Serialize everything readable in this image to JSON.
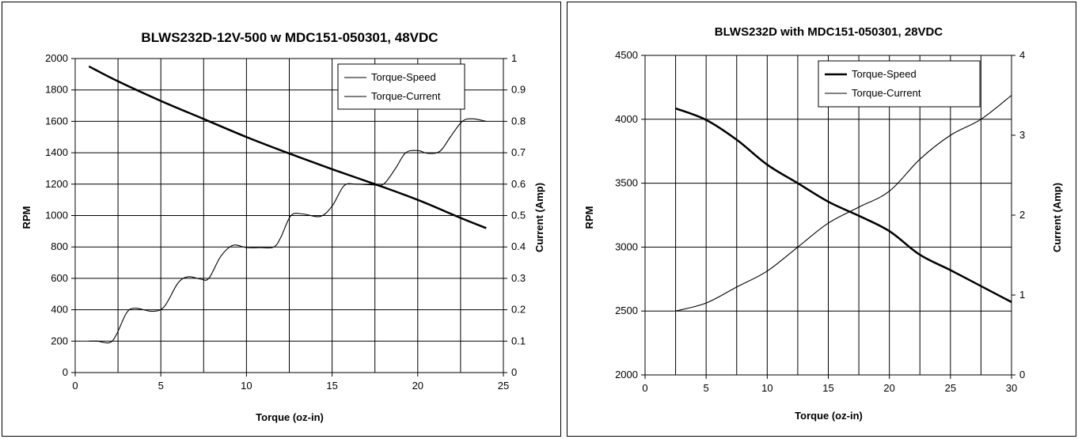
{
  "chart_data": [
    {
      "type": "line",
      "title": "BLWS232D-12V-500  w MDC151-050301,  48VDC",
      "xlabel": "Torque (oz-in)",
      "ylabel": "RPM",
      "y2label": "Current (Amp)",
      "xlim": [
        0,
        25
      ],
      "xticks": [
        0,
        5,
        10,
        15,
        20,
        25
      ],
      "ylim": [
        0,
        2000
      ],
      "yticks": [
        0,
        200,
        400,
        600,
        800,
        1000,
        1200,
        1400,
        1600,
        1800,
        2000
      ],
      "y2lim": [
        0,
        1
      ],
      "y2ticks": [
        0,
        0.1,
        0.2,
        0.3,
        0.4,
        0.5,
        0.6,
        0.7,
        0.8,
        0.9,
        1
      ],
      "grid": true,
      "legend_position": "top-right",
      "series": [
        {
          "name": "Torque-Speed",
          "axis": "left",
          "x": [
            0.8,
            2.5,
            5,
            7.5,
            10,
            12.5,
            15,
            17.5,
            20,
            22.5,
            24
          ],
          "values": [
            1950,
            1855,
            1730,
            1615,
            1500,
            1395,
            1295,
            1200,
            1100,
            985,
            920
          ]
        },
        {
          "name": "Torque-Current",
          "axis": "right",
          "x": [
            0.8,
            1.3,
            2.0,
            2.4,
            3.0,
            3.5,
            4.5,
            5.2,
            6.0,
            6.6,
            7.3,
            7.8,
            8.5,
            9.2,
            10.0,
            10.8,
            11.6,
            12.0,
            12.6,
            13.3,
            14.3,
            15.0,
            15.7,
            16.4,
            17.3,
            18.0,
            18.7,
            19.3,
            20.0,
            20.6,
            21.3,
            21.9,
            22.6,
            23.2,
            24.0
          ],
          "values": [
            0.1,
            0.1,
            0.095,
            0.12,
            0.19,
            0.205,
            0.195,
            0.21,
            0.285,
            0.305,
            0.298,
            0.3,
            0.37,
            0.405,
            0.398,
            0.398,
            0.4,
            0.43,
            0.5,
            0.505,
            0.497,
            0.53,
            0.595,
            0.6,
            0.598,
            0.6,
            0.65,
            0.7,
            0.707,
            0.698,
            0.705,
            0.75,
            0.8,
            0.808,
            0.8
          ]
        }
      ]
    },
    {
      "type": "line",
      "title": "BLWS232D with MDC151-050301, 28VDC",
      "xlabel": "Torque (oz-in)",
      "ylabel": "RPM",
      "y2label": "Current (Amp)",
      "xlim": [
        0,
        30
      ],
      "xticks": [
        0,
        5,
        10,
        15,
        20,
        25,
        30
      ],
      "ylim": [
        2000,
        4500
      ],
      "yticks": [
        2000,
        2500,
        3000,
        3500,
        4000,
        4500
      ],
      "y2lim": [
        0,
        4
      ],
      "y2ticks": [
        0,
        1,
        2,
        3,
        4
      ],
      "grid": true,
      "legend_position": "top-right",
      "series": [
        {
          "name": "Torque-Speed",
          "axis": "left",
          "x": [
            2.5,
            5,
            7.5,
            10,
            12.5,
            15,
            17.5,
            20,
            22.5,
            25,
            27.5,
            30
          ],
          "values": [
            4085,
            3995,
            3840,
            3645,
            3500,
            3355,
            3245,
            3125,
            2940,
            2820,
            2695,
            2570
          ]
        },
        {
          "name": "Torque-Current",
          "axis": "right",
          "x": [
            2.5,
            5,
            7.5,
            10,
            12.5,
            15,
            17.5,
            20,
            22.5,
            25,
            27.5,
            30
          ],
          "values": [
            0.8,
            0.9,
            1.1,
            1.3,
            1.6,
            1.9,
            2.1,
            2.3,
            2.7,
            3.0,
            3.2,
            3.5
          ]
        }
      ]
    }
  ]
}
